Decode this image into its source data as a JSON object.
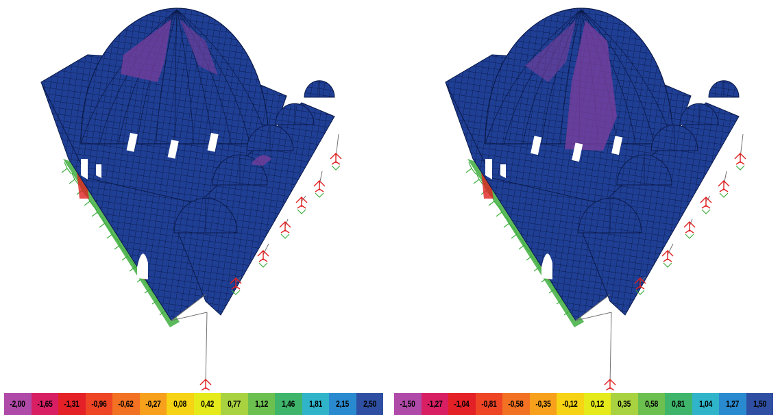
{
  "panels": [
    {
      "id": "left",
      "legend": {
        "labels": [
          "-2,00",
          "-1,65",
          "-1,31",
          "-0,96",
          "-0,62",
          "-0,27",
          "0,08",
          "0,42",
          "0,77",
          "1,12",
          "1,46",
          "1,81",
          "2,15",
          "2,50"
        ],
        "colors": [
          "#b04aa8",
          "#d81f63",
          "#e32127",
          "#ee4525",
          "#f27122",
          "#f6a01c",
          "#f6d314",
          "#e5ea1a",
          "#a8d240",
          "#6cc04f",
          "#3eb56a",
          "#2fb4c9",
          "#2a8ad0",
          "#2f4fa3"
        ]
      }
    },
    {
      "id": "right",
      "legend": {
        "labels": [
          "-1,50",
          "-1,27",
          "-1,04",
          "-0,81",
          "-0,58",
          "-0,35",
          "-0,12",
          "0,12",
          "0,35",
          "0,58",
          "0,81",
          "1,04",
          "1,27",
          "1,50"
        ],
        "colors": [
          "#b04aa8",
          "#d81f63",
          "#e32127",
          "#ee4525",
          "#f27122",
          "#f6a01c",
          "#f6d314",
          "#e5ea1a",
          "#a8d240",
          "#6cc04f",
          "#3eb56a",
          "#2fb4c9",
          "#2a8ad0",
          "#2f4fa3"
        ]
      }
    }
  ],
  "model": {
    "mesh_color": "#1f3f95",
    "mesh_line_color": "#0b1a4a",
    "stress_high_color": "#7a3f9c",
    "support_color_green": "#3fae3f",
    "support_color_red": "#e02020",
    "window_color": "#ffffff"
  }
}
